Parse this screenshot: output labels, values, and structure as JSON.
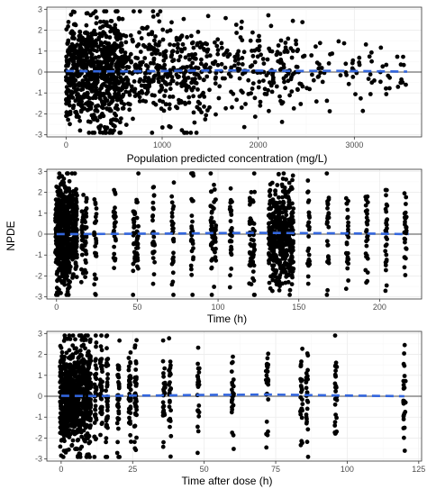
{
  "figure": {
    "ylabel": "NPDE"
  },
  "colors": {
    "point": "#000000",
    "smooth": "#3366dd",
    "zero_line": "#9a9a9a",
    "grid": "#ececec",
    "panel_border": "#333333"
  },
  "chart_data": [
    {
      "type": "scatter",
      "title": "",
      "xlabel": "Population predicted concentration (mg/L)",
      "ylabel": "NPDE",
      "xlim": [
        -200,
        3700
      ],
      "ylim": [
        -3.1,
        3.1
      ],
      "x_ticks": [
        0,
        1000,
        2000,
        3000
      ],
      "x_tick_labels": [
        "0",
        "1000",
        "2000",
        "3000"
      ],
      "y_ticks": [
        -3,
        -2,
        -1,
        0,
        1,
        2,
        3
      ],
      "y_tick_labels": [
        "-3",
        "-2",
        "-1",
        "0",
        "1",
        "2",
        "3"
      ],
      "grid": true,
      "reference_line_y": 0,
      "smooth": {
        "x": [
          0,
          400,
          800,
          1200,
          1600,
          2000,
          2400,
          2800,
          3200,
          3550
        ],
        "y": [
          0.05,
          0.03,
          0.04,
          0.06,
          0.08,
          0.07,
          0.05,
          0.06,
          0.04,
          0.02
        ]
      },
      "point_distribution": {
        "x_range": [
          0,
          3550
        ],
        "y_range": [
          -2.9,
          2.9
        ],
        "density": "concentrated below 1000 mg/L, sparse above 2500 mg/L",
        "approx_n": 1500
      }
    },
    {
      "type": "scatter",
      "title": "",
      "xlabel": "Time (h)",
      "ylabel": "NPDE",
      "xlim": [
        -6,
        226
      ],
      "ylim": [
        -3.1,
        3.1
      ],
      "x_ticks": [
        0,
        50,
        100,
        150,
        200
      ],
      "x_tick_labels": [
        "0",
        "50",
        "100",
        "150",
        "200"
      ],
      "y_ticks": [
        -3,
        -2,
        -1,
        0,
        1,
        2,
        3
      ],
      "y_tick_labels": [
        "-3",
        "-2",
        "-1",
        "0",
        "1",
        "2",
        "3"
      ],
      "grid": true,
      "reference_line_y": 0,
      "smooth": {
        "x": [
          0,
          25,
          50,
          75,
          100,
          125,
          150,
          175,
          200,
          218
        ],
        "y": [
          0.0,
          0.01,
          0.02,
          0.03,
          0.05,
          0.06,
          0.05,
          0.04,
          0.02,
          0.0
        ]
      },
      "sampling_times": [
        0,
        1,
        2,
        3,
        4,
        5,
        6,
        7,
        8,
        10,
        12,
        16,
        18,
        24,
        36,
        48,
        50,
        60,
        72,
        84,
        96,
        98,
        108,
        120,
        122,
        132,
        134,
        136,
        138,
        140,
        142,
        144,
        146,
        156,
        168,
        180,
        192,
        204,
        216
      ],
      "point_distribution": {
        "y_range": [
          -2.9,
          2.9
        ],
        "approx_n": 1500
      }
    },
    {
      "type": "scatter",
      "title": "",
      "xlabel": "Time after dose (h)",
      "ylabel": "NPDE",
      "xlim": [
        -5,
        126
      ],
      "ylim": [
        -3.1,
        3.1
      ],
      "x_ticks": [
        0,
        25,
        50,
        75,
        100,
        125
      ],
      "x_tick_labels": [
        "0",
        "25",
        "50",
        "75",
        "100",
        "125"
      ],
      "y_ticks": [
        -3,
        -2,
        -1,
        0,
        1,
        2,
        3
      ],
      "y_tick_labels": [
        "-3",
        "-2",
        "-1",
        "0",
        "1",
        "2",
        "3"
      ],
      "grid": true,
      "reference_line_y": 0,
      "smooth": {
        "x": [
          0,
          12,
          24,
          36,
          48,
          60,
          72,
          84,
          96,
          108,
          120
        ],
        "y": [
          0.02,
          0.01,
          0.03,
          0.04,
          0.06,
          0.07,
          0.08,
          0.06,
          0.04,
          0.02,
          0.0
        ]
      },
      "sampling_times": [
        0,
        1,
        2,
        3,
        4,
        5,
        6,
        7,
        8,
        9,
        10,
        12,
        14,
        16,
        20,
        24,
        26,
        36,
        38,
        48,
        60,
        72,
        84,
        86,
        96,
        120
      ],
      "point_distribution": {
        "y_range": [
          -2.9,
          2.9
        ],
        "approx_n": 1500
      }
    }
  ]
}
